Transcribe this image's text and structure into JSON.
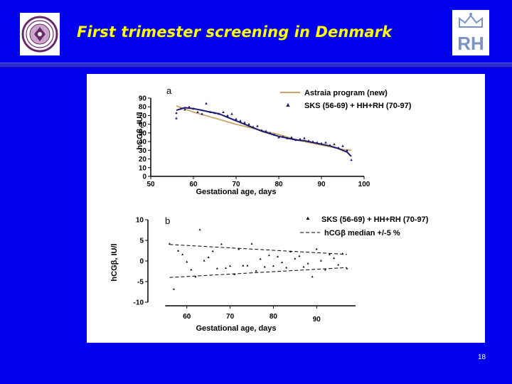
{
  "slide": {
    "title": "First trimester screening in Denmark",
    "slide_number": "18",
    "colors": {
      "background": "#0000ee",
      "title": "#ffff00",
      "fit_curve": "#1a1a6e",
      "astraia_curve": "#c8a468"
    }
  },
  "logos": {
    "left": "university-seal",
    "right": "RH"
  },
  "chart_data": [
    {
      "type": "scatter",
      "panel_label": "a",
      "xlabel": "Gestational age, days",
      "ylabel": "hCGβ, IU/l",
      "xlim": [
        50,
        100
      ],
      "ylim": [
        0,
        90
      ],
      "xticks": [
        50,
        60,
        70,
        80,
        90,
        100
      ],
      "yticks": [
        0,
        10,
        20,
        30,
        40,
        50,
        60,
        70,
        80,
        90
      ],
      "legend_position": "top-right",
      "series": [
        {
          "name": "Astraia program (new)",
          "kind": "line",
          "color": "#c8a468",
          "x": [
            56,
            60,
            65,
            70,
            75,
            80,
            85,
            90,
            95,
            97
          ],
          "y": [
            81,
            74,
            67,
            60,
            54,
            48,
            41,
            36,
            31,
            30
          ]
        },
        {
          "name": "SKS (56-69) + HH+RH (70-97)",
          "kind": "scatter",
          "color": "#1a1a6e",
          "x": [
            56,
            56,
            57,
            58,
            59,
            60,
            61,
            62,
            63,
            64,
            65,
            66,
            67,
            68,
            69,
            70,
            71,
            72,
            73,
            74,
            75,
            76,
            77,
            78,
            79,
            80,
            81,
            82,
            83,
            84,
            85,
            86,
            87,
            88,
            89,
            90,
            91,
            92,
            93,
            94,
            95,
            96,
            97
          ],
          "y": [
            73,
            67,
            78,
            77,
            80,
            78,
            74,
            72,
            84,
            74,
            73,
            72,
            74,
            70,
            72,
            66,
            64,
            62,
            60,
            57,
            58,
            53,
            52,
            50,
            48,
            45,
            46,
            44,
            45,
            42,
            43,
            44,
            41,
            40,
            39,
            38,
            39,
            36,
            37,
            33,
            35,
            30,
            19
          ]
        },
        {
          "name": "fit",
          "kind": "line",
          "color": "#1a1a6e",
          "x": [
            56,
            58,
            60,
            62,
            64,
            66,
            68,
            70,
            72,
            74,
            76,
            78,
            80,
            82,
            84,
            86,
            88,
            90,
            92,
            94,
            96,
            97
          ],
          "y": [
            76,
            79,
            78,
            76,
            74,
            72,
            68,
            64,
            60,
            56,
            52,
            49,
            46,
            44,
            42,
            41,
            39,
            37,
            35,
            32,
            28,
            23
          ]
        }
      ]
    },
    {
      "type": "scatter",
      "panel_label": "b",
      "xlabel": "Gestational age, days",
      "ylabel": "hCGβ, IU/l",
      "xlim": [
        51,
        99
      ],
      "ylim": [
        -10,
        10
      ],
      "xticks": [
        60,
        70,
        80,
        90
      ],
      "yticks": [
        -10,
        -5,
        0,
        5,
        10
      ],
      "legend_position": "top-right",
      "series": [
        {
          "name": "SKS (56-69) + HH+RH (70-97)",
          "kind": "scatter",
          "x": [
            56,
            57,
            58,
            59,
            60,
            61,
            62,
            63,
            64,
            65,
            66,
            67,
            68,
            69,
            70,
            71,
            72,
            73,
            74,
            75,
            76,
            77,
            78,
            79,
            80,
            81,
            82,
            83,
            84,
            85,
            86,
            87,
            88,
            89,
            90,
            91,
            92,
            93,
            94,
            95,
            96,
            97
          ],
          "y": [
            4.2,
            -6.8,
            2.5,
            1.6,
            -0.2,
            -2.1,
            -3.8,
            7.6,
            0.1,
            0.9,
            2.4,
            -1.8,
            4.1,
            -1.7,
            -1.2,
            -3.2,
            2.9,
            -1.1,
            -1.1,
            4.2,
            -2.4,
            0.5,
            -1.4,
            1.4,
            -1.2,
            1.1,
            -0.3,
            -1.6,
            2.3,
            0.6,
            1.2,
            -1.4,
            -0.6,
            -3.8,
            2.9,
            0.1,
            -2.1,
            1.6,
            0.7,
            -0.9,
            1.8,
            -1.8
          ]
        },
        {
          "name": "hCGβ median +/-5 %",
          "kind": "line",
          "dash": "dashed",
          "upper": {
            "x": [
              56,
              97
            ],
            "y": [
              4.0,
              1.6
            ]
          },
          "lower": {
            "x": [
              56,
              97
            ],
            "y": [
              -4.0,
              -1.6
            ]
          }
        }
      ]
    }
  ]
}
